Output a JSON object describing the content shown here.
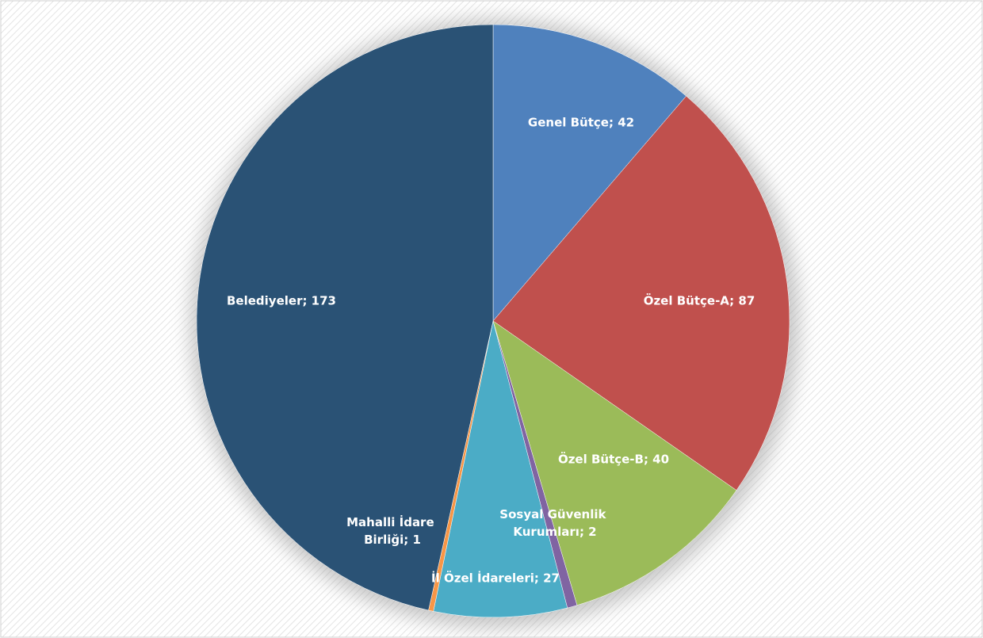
{
  "chart_data": {
    "type": "pie",
    "values": [
      42,
      87,
      40,
      2,
      27,
      1,
      173
    ],
    "value_labels": [
      "Genel Bütçe; 42",
      "Özel Bütçe-A; 87",
      "Özel Bütçe-B; 40",
      "Sosyal Güvenlik Kurumları; 2",
      "İl Özel İdareleri; 27",
      "Mahalli İdare Birliği; 1",
      "Belediyeler; 173"
    ],
    "colors": [
      "#4f81bd",
      "#c0504d",
      "#9bbb59",
      "#8064a2",
      "#4bacc6",
      "#f79646",
      "#2a5275"
    ]
  }
}
